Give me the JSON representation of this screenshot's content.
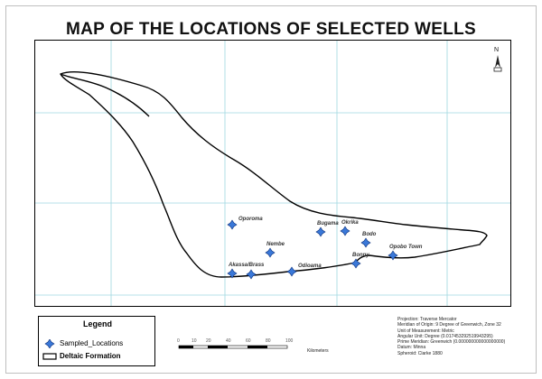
{
  "title": "MAP OF THE LOCATIONS OF SELECTED WELLS",
  "north_arrow": {
    "label": "N"
  },
  "wells": [
    {
      "name": "Oporoma"
    },
    {
      "name": "Nembe"
    },
    {
      "name": "Akassa/Brass"
    },
    {
      "name": "Odioama"
    },
    {
      "name": "Bugama"
    },
    {
      "name": "Okrika"
    },
    {
      "name": "Bodo"
    },
    {
      "name": "Bonny"
    },
    {
      "name": "Opobo Town"
    },
    {
      "name": ""
    }
  ],
  "legend": {
    "title": "Legend",
    "items": [
      {
        "label": "Sampled_Locations",
        "symbol": "well-point-icon"
      },
      {
        "label": "Deltaic Formation",
        "symbol": "polygon-outline-icon"
      }
    ]
  },
  "scale_bar": {
    "ticks": [
      "0",
      "10",
      "20",
      "40",
      "60",
      "80",
      "100"
    ],
    "units": "Kilometers"
  },
  "projection_info": [
    "Projection:      Traverse Mercator",
    "Meridian of Origin: 9 Degree of Greenwich, Zone 32",
    "Unit of Measurement: Metric",
    "Angular Unit: Degree (0.017453292519943295)",
    "Prime Meridian: Greenwich (0.000000000000000000)",
    "Datum: Minna",
    "Spheroid: Clarke 1880"
  ],
  "colors": {
    "well_fill": "#3a78d8",
    "well_stroke": "#0b2f7a",
    "grid": "#9fd7e0",
    "outline": "#000000"
  }
}
